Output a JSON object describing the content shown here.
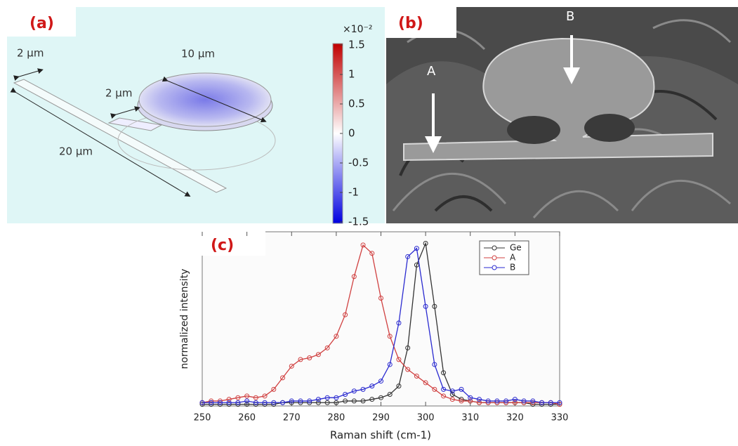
{
  "panel_a": {
    "label": "(a)",
    "dimensions": [
      "2 µm",
      "10 µm",
      "2 µm",
      "20 µm"
    ],
    "colorbar": {
      "multiplier": "×10⁻²",
      "ticks": [
        1.5,
        1,
        0.5,
        0,
        -0.5,
        -1,
        -1.5
      ]
    }
  },
  "panel_b": {
    "label": "(b)",
    "markers": [
      "A",
      "B"
    ]
  },
  "chart_data": {
    "type": "line",
    "label": "(c)",
    "xlabel": "Raman shift (cm-1)",
    "ylabel": "normalized intensity",
    "xlim": [
      250,
      330
    ],
    "xticks": [
      250,
      260,
      270,
      280,
      290,
      300,
      310,
      320,
      330
    ],
    "ylim": [
      0,
      1.05
    ],
    "legend": "upper right",
    "x": [
      250,
      252,
      254,
      256,
      258,
      260,
      262,
      264,
      266,
      268,
      270,
      272,
      274,
      276,
      278,
      280,
      282,
      284,
      286,
      288,
      290,
      292,
      294,
      296,
      298,
      300,
      302,
      304,
      306,
      308,
      310,
      312,
      314,
      316,
      318,
      320,
      322,
      324,
      326,
      328,
      330
    ],
    "series": [
      {
        "name": "Ge",
        "color": "#333333",
        "values": [
          0.01,
          0.01,
          0.01,
          0.01,
          0.01,
          0.01,
          0.01,
          0.01,
          0.01,
          0.02,
          0.02,
          0.02,
          0.02,
          0.02,
          0.02,
          0.02,
          0.03,
          0.03,
          0.03,
          0.04,
          0.05,
          0.07,
          0.12,
          0.35,
          0.85,
          0.98,
          0.6,
          0.2,
          0.07,
          0.04,
          0.03,
          0.02,
          0.02,
          0.02,
          0.02,
          0.02,
          0.02,
          0.01,
          0.01,
          0.01,
          0.01
        ]
      },
      {
        "name": "A",
        "color": "#d04040",
        "values": [
          0.02,
          0.03,
          0.03,
          0.04,
          0.05,
          0.06,
          0.05,
          0.06,
          0.1,
          0.17,
          0.24,
          0.28,
          0.29,
          0.31,
          0.35,
          0.42,
          0.55,
          0.78,
          0.97,
          0.92,
          0.65,
          0.42,
          0.28,
          0.22,
          0.18,
          0.14,
          0.1,
          0.06,
          0.04,
          0.03,
          0.03,
          0.02,
          0.02,
          0.02,
          0.02,
          0.02,
          0.02,
          0.02,
          0.02,
          0.02,
          0.01
        ]
      },
      {
        "name": "B",
        "color": "#2a2ad0",
        "values": [
          0.02,
          0.02,
          0.02,
          0.02,
          0.02,
          0.03,
          0.02,
          0.02,
          0.02,
          0.02,
          0.03,
          0.03,
          0.03,
          0.04,
          0.05,
          0.05,
          0.07,
          0.09,
          0.1,
          0.12,
          0.15,
          0.25,
          0.5,
          0.9,
          0.95,
          0.6,
          0.25,
          0.1,
          0.09,
          0.1,
          0.05,
          0.04,
          0.03,
          0.03,
          0.03,
          0.04,
          0.03,
          0.03,
          0.02,
          0.02,
          0.02
        ]
      }
    ]
  }
}
